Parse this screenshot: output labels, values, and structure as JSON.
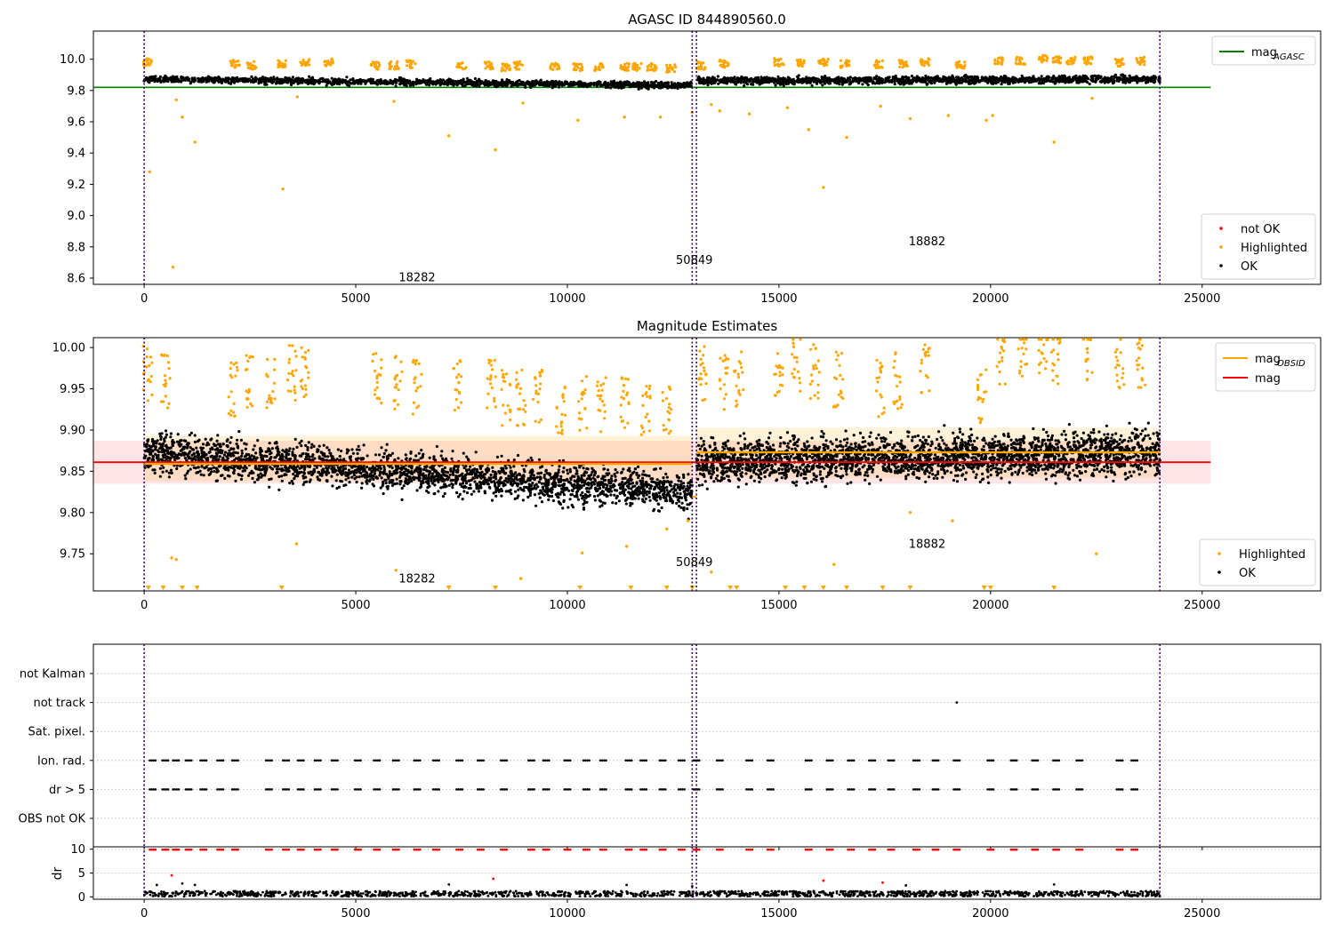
{
  "chart_data": [
    {
      "type": "scatter",
      "title": "AGASC ID 844890560.0",
      "xlim": [
        -1200,
        27800
      ],
      "ylim": [
        8.56,
        10.18
      ],
      "xticks": [
        0,
        5000,
        10000,
        15000,
        20000,
        25000
      ],
      "xtick_labels": [
        "0",
        "5000",
        "10000",
        "15000",
        "20000",
        "25000"
      ],
      "yticks": [
        8.6,
        8.8,
        9.0,
        9.2,
        9.4,
        9.6,
        9.8,
        10.0
      ],
      "ytick_labels": [
        "8.6",
        "8.8",
        "9.0",
        "9.2",
        "9.4",
        "9.6",
        "9.8",
        "10.0"
      ],
      "obs_boundaries": [
        0,
        12950,
        13050,
        24000
      ],
      "obs_labels": [
        {
          "text": "18282",
          "x": 6450,
          "y": 8.58
        },
        {
          "text": "50849",
          "x": 13000,
          "y": 8.69
        },
        {
          "text": "18882",
          "x": 18500,
          "y": 8.81
        }
      ],
      "ref_line": {
        "name": "mag_AGASC",
        "y": 9.82,
        "x": [
          -1200,
          25200
        ],
        "color": "#008000"
      },
      "legend_lines": [
        {
          "label": "mag",
          "sub": "AGASC",
          "color": "#008000"
        }
      ],
      "legend_points": [
        {
          "label": "not OK",
          "color": "#ff0000"
        },
        {
          "label": "Highlighted",
          "color": "#ffa500"
        },
        {
          "label": "OK",
          "color": "#000000"
        }
      ],
      "series": [
        {
          "name": "OK",
          "color": "#000000",
          "segments": [
            {
              "x": [
                0,
                12950
              ],
              "mean_start": 9.873,
              "mean_end": 9.833,
              "spread": 0.014
            },
            {
              "x": [
                13050,
                24000
              ],
              "mean_start": 9.862,
              "mean_end": 9.872,
              "spread": 0.016
            }
          ]
        },
        {
          "name": "Highlighted",
          "color": "#ffa500",
          "cluster_x": [
            80,
            2150,
            2550,
            3250,
            3800,
            4350,
            5450,
            5900,
            6300,
            7500,
            8150,
            8550,
            8850,
            9700,
            10250,
            10750,
            11350,
            11650,
            12000,
            12450,
            13150,
            13700,
            15000,
            15500,
            16050,
            16550,
            17350,
            17950,
            18450,
            19300,
            20200,
            20700,
            21250,
            21550,
            21900,
            22300,
            23050,
            23550
          ],
          "cluster_y": [
            9.98,
            9.97,
            9.96,
            9.97,
            9.98,
            9.98,
            9.96,
            9.96,
            9.97,
            9.96,
            9.96,
            9.95,
            9.96,
            9.95,
            9.95,
            9.95,
            9.95,
            9.95,
            9.95,
            9.94,
            9.96,
            9.97,
            9.98,
            9.98,
            9.98,
            9.97,
            9.97,
            9.97,
            9.98,
            9.96,
            9.99,
            9.99,
            10.0,
            10.0,
            9.99,
            9.99,
            9.98,
            9.99
          ],
          "outliers_x": [
            130,
            680,
            760,
            900,
            1200,
            3280,
            3620,
            5900,
            7200,
            8300,
            8950,
            10250,
            11350,
            12200,
            12950,
            13400,
            13600,
            14300,
            15200,
            15700,
            16050,
            16600,
            17400,
            18100,
            19000,
            19900,
            20050,
            21500,
            22400
          ],
          "outliers_y": [
            9.28,
            8.67,
            9.74,
            9.63,
            9.47,
            9.17,
            9.76,
            9.73,
            9.51,
            9.42,
            9.72,
            9.61,
            9.63,
            9.63,
            9.66,
            9.71,
            9.67,
            9.65,
            9.69,
            9.55,
            9.18,
            9.5,
            9.7,
            9.62,
            9.64,
            9.61,
            9.64,
            9.47,
            9.75
          ]
        }
      ]
    },
    {
      "type": "scatter",
      "title": "Magnitude Estimates",
      "xlim": [
        -1200,
        27800
      ],
      "ylim": [
        9.705,
        10.012
      ],
      "xticks": [
        0,
        5000,
        10000,
        15000,
        20000,
        25000
      ],
      "xtick_labels": [
        "0",
        "5000",
        "10000",
        "15000",
        "20000",
        "25000"
      ],
      "yticks": [
        9.75,
        9.8,
        9.85,
        9.9,
        9.95,
        10.0
      ],
      "ytick_labels": [
        "9.75",
        "9.80",
        "9.85",
        "9.90",
        "9.95",
        "10.00"
      ],
      "obs_boundaries": [
        0,
        12950,
        13050,
        24000
      ],
      "obs_labels": [
        {
          "text": "18282",
          "x": 6450,
          "y": 9.715
        },
        {
          "text": "50849",
          "x": 13000,
          "y": 9.735
        },
        {
          "text": "18882",
          "x": 18500,
          "y": 9.757
        }
      ],
      "band": {
        "x": [
          -1200,
          25200
        ],
        "y": [
          9.835,
          9.887
        ],
        "color": "#ff0000",
        "opacity": 0.1
      },
      "obs_bands": [
        {
          "x": [
            0,
            12950
          ],
          "y": [
            9.838,
            9.893
          ]
        },
        {
          "x": [
            13050,
            24000
          ],
          "y": [
            9.842,
            9.903
          ]
        }
      ],
      "mag_line": {
        "y": 9.861,
        "x": [
          -1200,
          25200
        ],
        "color": "#ff0000"
      },
      "obs_mag_lines": [
        {
          "x": [
            0,
            12950
          ],
          "y": 9.859
        },
        {
          "x": [
            12950,
            13050
          ],
          "y": 9.819
        },
        {
          "x": [
            13050,
            24000
          ],
          "y": 9.873
        }
      ],
      "legend_lines": [
        {
          "label": "mag",
          "sub": "OBSID",
          "color": "#ffa500"
        },
        {
          "label": "mag",
          "sub": "",
          "color": "#ff0000"
        }
      ],
      "legend_points": [
        {
          "label": "Highlighted",
          "color": "#ffa500"
        },
        {
          "label": "OK",
          "color": "#000000"
        }
      ],
      "series": [
        {
          "name": "OK",
          "color": "#000000",
          "segments": [
            {
              "x": [
                0,
                12950
              ],
              "mean_start": 9.872,
              "mean_end": 9.825,
              "spread": 0.016
            },
            {
              "x": [
                13050,
                24000
              ],
              "mean_start": 9.862,
              "mean_end": 9.872,
              "spread": 0.018
            }
          ]
        },
        {
          "name": "Highlighted",
          "color": "#ffa500",
          "cluster_x": [
            80,
            500,
            2100,
            2500,
            3000,
            3500,
            3800,
            5500,
            6000,
            6450,
            7400,
            8200,
            8550,
            8900,
            9300,
            9850,
            10350,
            10800,
            11350,
            11850,
            12350,
            13200,
            13700,
            14050,
            15000,
            15400,
            15850,
            16400,
            17400,
            17800,
            18450,
            19800,
            20250,
            20750,
            21250,
            21550,
            22300,
            23050,
            23550
          ],
          "cluster_y": [
            9.97,
            9.96,
            9.95,
            9.96,
            9.96,
            9.97,
            9.97,
            9.96,
            9.96,
            9.95,
            9.95,
            9.95,
            9.94,
            9.94,
            9.94,
            9.93,
            9.93,
            9.93,
            9.93,
            9.92,
            9.92,
            9.97,
            9.96,
            9.96,
            9.96,
            9.98,
            9.97,
            9.96,
            9.95,
            9.96,
            9.97,
            9.94,
            9.99,
            10.0,
            10.0,
            9.99,
            9.99,
            9.98,
            9.98
          ],
          "outliers_x": [
            650,
            760,
            3600,
            5950,
            8900,
            10350,
            11400,
            12350,
            12850,
            13400,
            16300,
            18100,
            19100,
            22500
          ],
          "outliers_y": [
            9.745,
            9.743,
            9.762,
            9.73,
            9.72,
            9.751,
            9.759,
            9.78,
            9.79,
            9.728,
            9.737,
            9.8,
            9.79,
            9.75
          ],
          "floor_markers_x": [
            100,
            450,
            900,
            1250,
            3250,
            7200,
            8300,
            10300,
            11500,
            12350,
            12950,
            13850,
            14000,
            15150,
            15600,
            16050,
            16600,
            17450,
            18100,
            19850,
            20000,
            21500
          ]
        }
      ]
    },
    {
      "type": "scatter",
      "title": "",
      "xlim": [
        -1200,
        27800
      ],
      "categories": [
        "not Kalman",
        "not track",
        "Sat. pixel.",
        "Ion. rad.",
        "dr > 5",
        "OBS not OK"
      ],
      "obs_boundaries": [
        0,
        12950,
        13050,
        24000
      ],
      "flag_clusters_x": [
        200,
        500,
        750,
        1050,
        1400,
        1800,
        2150,
        2950,
        3350,
        3700,
        4100,
        4500,
        5050,
        5500,
        5950,
        6450,
        6900,
        7450,
        7950,
        8500,
        9150,
        9500,
        10000,
        10450,
        10850,
        11450,
        11800,
        12250,
        12700,
        13050,
        13600,
        14300,
        14800,
        15700,
        16200,
        16700,
        17200,
        17650,
        18250,
        18700,
        19200,
        20000,
        20550,
        21050,
        21550,
        22100,
        23050,
        23400
      ],
      "flags": [
        {
          "category": "not Kalman",
          "x": []
        },
        {
          "category": "not track",
          "x": [
            19200
          ]
        },
        {
          "category": "Sat. pixel.",
          "x": []
        },
        {
          "category": "Ion. rad.",
          "clusters": "flag_clusters_x"
        },
        {
          "category": "dr > 5",
          "clusters": "flag_clusters_x"
        },
        {
          "category": "OBS not OK",
          "x": []
        }
      ]
    },
    {
      "type": "scatter",
      "title": "",
      "ylabel": "dr",
      "xlim": [
        -1200,
        27800
      ],
      "ylim": [
        -0.5,
        10.5
      ],
      "xticks": [
        0,
        5000,
        10000,
        15000,
        20000,
        25000
      ],
      "xtick_labels": [
        "0",
        "5000",
        "10000",
        "15000",
        "20000",
        "25000"
      ],
      "yticks": [
        0,
        5,
        10
      ],
      "ytick_labels": [
        "0",
        "5",
        "10"
      ],
      "obs_boundaries": [
        0,
        12950,
        13050,
        24000
      ],
      "clipped_color": "#ff0000",
      "clipped_clusters_x": [
        200,
        500,
        750,
        1050,
        1400,
        1800,
        2150,
        2950,
        3350,
        3700,
        4100,
        4500,
        5050,
        5500,
        5950,
        6450,
        6900,
        7450,
        7950,
        8500,
        9150,
        9500,
        10000,
        10450,
        10850,
        11450,
        11800,
        12250,
        12700,
        13050,
        13600,
        14300,
        14800,
        15700,
        16200,
        16700,
        17200,
        17650,
        18250,
        18700,
        19200,
        20000,
        20550,
        21050,
        21550,
        22100,
        23050,
        23400
      ],
      "red_outliers": [
        {
          "x": 650,
          "y": 4.5
        },
        {
          "x": 8250,
          "y": 3.8
        },
        {
          "x": 16050,
          "y": 3.4
        },
        {
          "x": 17450,
          "y": 3.0
        }
      ],
      "ok_level": [
        0.1,
        1.2
      ],
      "ok_outliers": [
        {
          "x": 300,
          "y": 2.5
        },
        {
          "x": 900,
          "y": 2.8
        },
        {
          "x": 1200,
          "y": 2.5
        },
        {
          "x": 7200,
          "y": 2.6
        },
        {
          "x": 11400,
          "y": 2.5
        },
        {
          "x": 18000,
          "y": 2.4
        },
        {
          "x": 21500,
          "y": 2.6
        },
        {
          "x": 12950,
          "y": 2.2
        }
      ]
    }
  ]
}
